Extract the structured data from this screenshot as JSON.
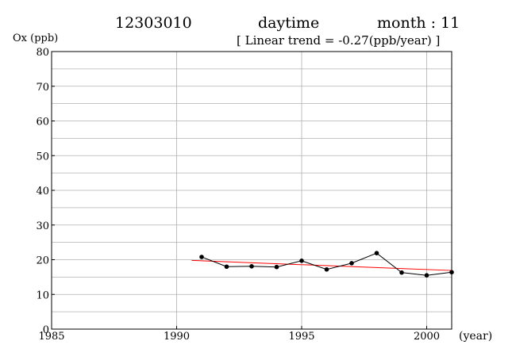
{
  "header": {
    "station": "12303010",
    "period": "daytime",
    "month": "month : 11",
    "trend_text": "[ Linear trend = -0.27(ppb/year) ]"
  },
  "chart_data": {
    "type": "line",
    "ylabel": "Ox (ppb)",
    "xunit": "(year)",
    "xlim": [
      1985,
      2001
    ],
    "ylim": [
      0,
      80
    ],
    "xticks": [
      1985,
      1990,
      1995,
      2000
    ],
    "yticks": [
      0,
      10,
      20,
      30,
      40,
      50,
      60,
      70,
      80
    ],
    "grid": true,
    "series": [
      {
        "x": [
          1991,
          1992,
          1993,
          1994,
          1995,
          1996,
          1997,
          1998,
          1999,
          2000,
          2001
        ],
        "y": [
          20.8,
          18.0,
          18.1,
          17.9,
          19.7,
          17.2,
          19.0,
          21.9,
          16.3,
          15.5,
          16.4
        ],
        "color": "#000000",
        "marker": "circle"
      }
    ],
    "trend": {
      "x": [
        1990.6,
        2001
      ],
      "y": [
        19.8,
        16.9
      ],
      "color": "#ff0000"
    }
  }
}
